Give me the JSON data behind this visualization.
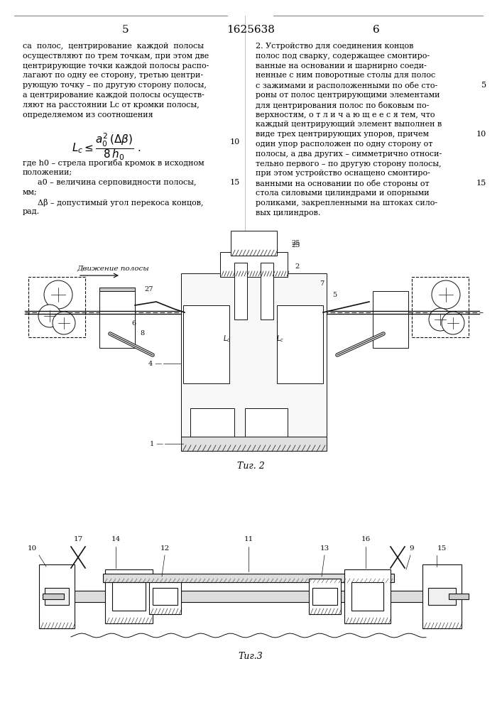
{
  "page_num_left": "5",
  "page_num_center": "1625638",
  "page_num_right": "6",
  "left_column_text": [
    "са  полос,  центрирование  каждой  полосы",
    "осуществляют по трем точкам, при этом две",
    "центрирующие точки каждой полосы распо-",
    "лагают по одну ее сторону, третью центри-",
    "рующую точку – по другую сторону полосы,",
    "а центрирование каждой полосы осуществ-",
    "ляют на расстоянии Lc от кромки полосы,",
    "определяемом из соотношения"
  ],
  "left_text2": [
    "где h0 – стрела прогиба кромок в исходном",
    "положении;"
  ],
  "left_text3": [
    "      a0 – величина серповидности полосы,",
    "мм;"
  ],
  "left_text4": [
    "      Δβ – допустимый угол перекоса концов,",
    "рад."
  ],
  "right_column_text": [
    "2. Устройство для соединения концов",
    "полос под сварку, содержащее смонтиро-",
    "ванные на основании и шарнирно соеди-",
    "ненные с ним поворотные столы для полос",
    "с зажимами и расположенными по обе сто-",
    "роны от полос центрирующими элементами",
    "для центрирования полос по боковым по-",
    "верхностям, о т л и ч а ю щ е е с я тем, что",
    "каждый центрирующий элемент выполнен в",
    "виде трех центрирующих упоров, причем",
    "один упор расположен по одну сторону от",
    "полосы, а два других – симметрично относи-",
    "тельно первого – по другую сторону полосы,",
    "при этом устройство оснащено смонтиро-",
    "ванными на основании по обе стороны от",
    "стола силовыми цилиндрами и опорными",
    "роликами, закрепленными на штоках сило-",
    "вых цилиндров."
  ],
  "fig2_caption": "Τиг. 2",
  "fig3_caption": "Τиг.3",
  "bg_color": "#ffffff",
  "text_color": "#000000",
  "dc": "#1a1a1a"
}
